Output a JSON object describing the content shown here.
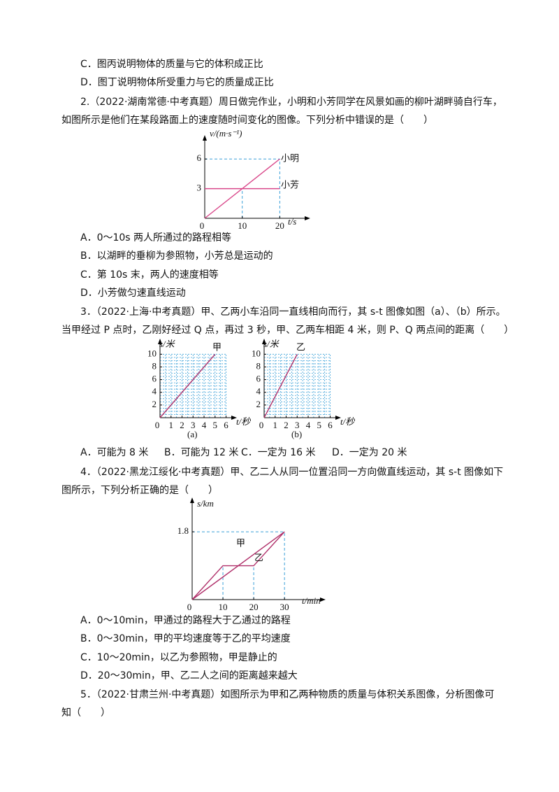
{
  "text": [
    "C．图丙说明物体的质量与它的体积成正比",
    "D．图丁说明物体所受重力与它的质量成正比",
    "2.（2022·湖南常德·中考真题）周日做完作业，小明和小芳同学在风景如画的柳叶湖畔骑自行车，",
    "如图所示是他们在某段路面上的速度随时间变化的图像。下列分析中错误的是（　　）",
    "A．0～10s 两人所通过的路程相等",
    "B．以湖畔的垂柳为参照物，小芳总是运动的",
    "C．第 10s 末，两人的速度相等",
    "D．小芳做匀速直线运动",
    "3．（2022·上海·中考真题）甲、乙两小车沿同一直线相向而行，其 s-t 图像如图（a）、（b）所示。",
    "当甲经过 P 点时，乙刚好经过 Q 点，再过 3 秒，甲、乙两车相距 4 米，则 P、Q 两点间的距离（　　）",
    "4．（2022·黑龙江绥化·中考真题）甲、乙二人从同一位置沿同一方向做直线运动，其 s-t 图像如下",
    "图所示，下列分析正确的是（　　）",
    "A．0～10min，甲通过的路程大于乙通过的路程",
    "B．0～30min，甲的平均速度等于乙的平均速度",
    "C．10～20min，以乙为参照物，甲是静止的",
    "D．20～30min，甲、乙二人之间的距离越来越大",
    "5．（2022·甘肃兰州·中考真题）如图所示为甲和乙两种物质的质量与体积关系图像，分析图像可",
    "知（　　）"
  ],
  "q3_options": [
    "A．可能为 8 米",
    "B．可能为 12 米",
    "C．一定为 16 米",
    "D．一定为 20 米"
  ],
  "figures": [
    {
      "type": "line",
      "y_label": "v/(m·s⁻¹)",
      "x_label": "t/s",
      "origin_label": "0",
      "xlim": [
        0,
        27
      ],
      "ylim": [
        0,
        8
      ],
      "xticks": [
        10,
        20
      ],
      "yticks": [
        3,
        6
      ],
      "grid": false,
      "series": [
        {
          "name": "小明",
          "color": "#d9478a",
          "x": [
            0,
            20
          ],
          "y": [
            0,
            6
          ]
        },
        {
          "name": "小芳",
          "color": "#d9478a",
          "x": [
            0,
            20
          ],
          "y": [
            3,
            3
          ]
        }
      ]
    },
    {
      "type": "line",
      "y_label": "s/米",
      "x_label": "t/秒",
      "origin_label": "0",
      "xlim": [
        0,
        6.6
      ],
      "ylim": [
        0,
        11.8
      ],
      "xticks": [
        1,
        2,
        3,
        4,
        5,
        6
      ],
      "yticks": [
        2,
        4,
        6,
        8,
        10
      ],
      "grid": true,
      "caption": "(a)",
      "series": [
        {
          "name": "甲",
          "color": "#b0306a",
          "x": [
            0,
            5
          ],
          "y": [
            0,
            10
          ]
        }
      ]
    },
    {
      "type": "line",
      "y_label": "s/米",
      "x_label": "t/秒",
      "origin_label": "0",
      "xlim": [
        0,
        6.6
      ],
      "ylim": [
        0,
        11.8
      ],
      "xticks": [
        1,
        2,
        3,
        4,
        5,
        6
      ],
      "yticks": [
        2,
        4,
        6,
        8,
        10
      ],
      "grid": true,
      "caption": "(b)",
      "series": [
        {
          "name": "乙",
          "color": "#b0306a",
          "x": [
            0,
            3
          ],
          "y": [
            0,
            10
          ]
        }
      ]
    },
    {
      "type": "line",
      "y_label": "s/km",
      "x_label": "t/min",
      "origin_label": "0",
      "xlim": [
        0,
        42
      ],
      "ylim": [
        0,
        2.6
      ],
      "xticks": [
        10,
        20,
        30
      ],
      "yticks": [
        1.8
      ],
      "grid": false,
      "series": [
        {
          "name": "甲",
          "color": "#b0306a",
          "x": [
            0,
            30
          ],
          "y": [
            0,
            1.8
          ]
        },
        {
          "name": "乙",
          "color": "#b0306a",
          "x": [
            0,
            10,
            20,
            30
          ],
          "y": [
            0,
            0.9,
            0.9,
            1.8
          ]
        }
      ]
    }
  ]
}
